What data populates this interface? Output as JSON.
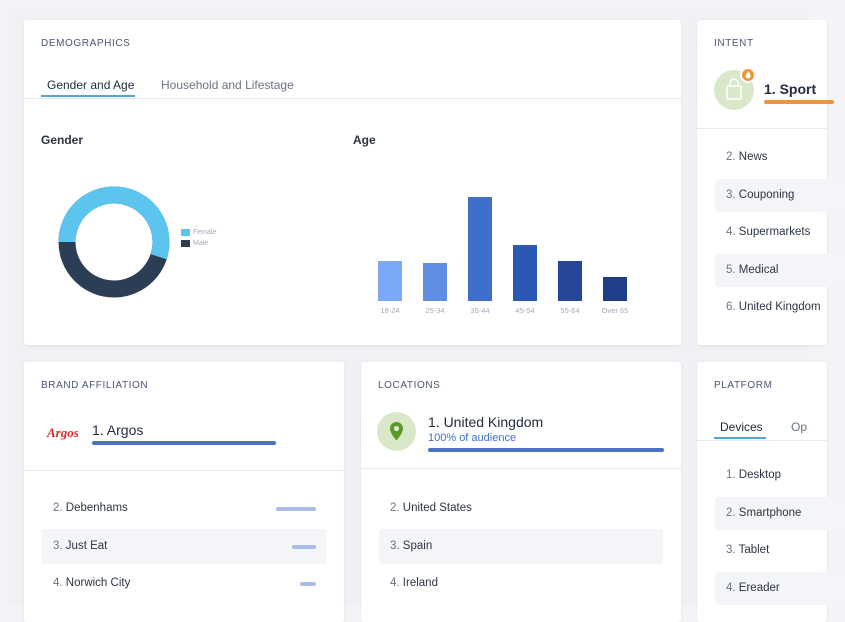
{
  "colors": {
    "female": "#5bc5f0",
    "male": "#2c3e55",
    "bar_colors": [
      "#7ba9f5",
      "#5f8ee2",
      "#3f6fcc",
      "#2c58b5",
      "#24479a",
      "#1f3f88"
    ],
    "accent_blue": "#4a72c4",
    "accent_orange": "#f0943a",
    "tab_underline": "#4fa6d8"
  },
  "demographics": {
    "title": "DEMOGRAPHICS",
    "tabs": [
      "Gender and Age",
      "Household and Lifestage"
    ],
    "gender": {
      "title": "Gender",
      "legend": [
        "Female",
        "Male"
      ],
      "female_share": 0.55
    }
  },
  "chart_data": {
    "type": "bar",
    "title": "Age",
    "categories": [
      "18-24",
      "25-34",
      "35-44",
      "45-54",
      "55-64",
      "Over 65"
    ],
    "values": [
      20,
      19,
      52,
      28,
      20,
      12
    ],
    "ylim": [
      0,
      52
    ],
    "xlabel": "",
    "ylabel": ""
  },
  "intent": {
    "title": "INTENT",
    "top_item": "1. Sport",
    "items": [
      {
        "num": "2.",
        "label": "News"
      },
      {
        "num": "3.",
        "label": "Couponing"
      },
      {
        "num": "4.",
        "label": "Supermarkets"
      },
      {
        "num": "5.",
        "label": "Medical"
      },
      {
        "num": "6.",
        "label": "United Kingdom"
      }
    ]
  },
  "brand": {
    "title": "BRAND AFFILIATION",
    "logo_text": "Argos",
    "top_item": "1. Argos",
    "items": [
      {
        "num": "2.",
        "label": "Debenhams",
        "share": 0.4
      },
      {
        "num": "3.",
        "label": "Just Eat",
        "share": 0.24
      },
      {
        "num": "4.",
        "label": "Norwich City",
        "share": 0.16
      }
    ]
  },
  "locations": {
    "title": "LOCATIONS",
    "top_item": "1. United Kingdom",
    "top_sub": "100% of audience",
    "items": [
      {
        "num": "2.",
        "label": "United States"
      },
      {
        "num": "3.",
        "label": "Spain"
      },
      {
        "num": "4.",
        "label": "Ireland"
      }
    ]
  },
  "platform": {
    "title": "PLATFORM",
    "tabs": [
      "Devices",
      "Op"
    ],
    "items": [
      {
        "num": "1.",
        "label": "Desktop"
      },
      {
        "num": "2.",
        "label": "Smartphone"
      },
      {
        "num": "3.",
        "label": "Tablet"
      },
      {
        "num": "4.",
        "label": "Ereader"
      }
    ]
  }
}
